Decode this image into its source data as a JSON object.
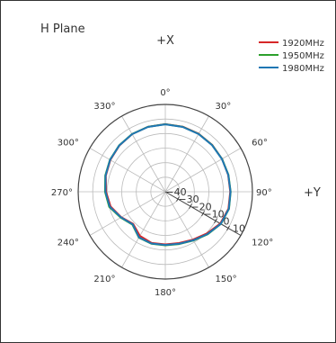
{
  "chart_data": {
    "type": "line",
    "subtype": "polar",
    "title": "H Plane",
    "direction_labels": {
      "top": "+X",
      "right": "+Y"
    },
    "angular_axis": {
      "direction": "clockwise",
      "zero_at": "top",
      "tick_values": [
        0,
        30,
        60,
        90,
        120,
        150,
        180,
        210,
        240,
        270,
        300,
        330
      ],
      "tick_labels": [
        "0°",
        "30°",
        "60°",
        "90°",
        "120°",
        "150°",
        "180°",
        "210°",
        "240°",
        "270°",
        "300°",
        "330°"
      ]
    },
    "radial_axis": {
      "range": [
        -50,
        10
      ],
      "tick_values": [
        -40,
        -30,
        -20,
        -10,
        0,
        10
      ],
      "tick_labels": [
        "−40",
        "−30",
        "−20",
        "−10",
        "0",
        "10"
      ],
      "label_angle_deg": 120
    },
    "grid": true,
    "legend": {
      "position": "top-right"
    },
    "series": [
      {
        "name": "1920MHz",
        "color": "#d62728",
        "theta": [
          0,
          15,
          30,
          45,
          60,
          75,
          90,
          105,
          120,
          135,
          150,
          165,
          180,
          195,
          210,
          225,
          240,
          255,
          270,
          285,
          300,
          315,
          330,
          345,
          360
        ],
        "r": [
          -3.5,
          -3.7,
          -4.0,
          -4.4,
          -4.9,
          -5.2,
          -5.3,
          -5.0,
          -6.3,
          -9.5,
          -12.0,
          -13.5,
          -13.8,
          -13.6,
          -15.0,
          -18.7,
          -15.0,
          -11.0,
          -9.2,
          -7.6,
          -6.3,
          -5.2,
          -4.3,
          -3.8,
          -3.5
        ]
      },
      {
        "name": "1950MHz",
        "color": "#2ca02c",
        "theta": [
          0,
          15,
          30,
          45,
          60,
          75,
          90,
          105,
          120,
          135,
          150,
          165,
          180,
          195,
          210,
          225,
          240,
          255,
          270,
          285,
          300,
          315,
          330,
          345,
          360
        ],
        "r": [
          -3.6,
          -3.8,
          -4.1,
          -4.5,
          -4.9,
          -5.0,
          -5.0,
          -4.6,
          -5.8,
          -8.7,
          -11.3,
          -12.8,
          -13.2,
          -13.0,
          -13.6,
          -18.0,
          -14.5,
          -10.0,
          -8.5,
          -7.2,
          -6.0,
          -5.0,
          -4.2,
          -3.8,
          -3.6
        ]
      },
      {
        "name": "1980MHz",
        "color": "#1f77b4",
        "theta": [
          0,
          15,
          30,
          45,
          60,
          75,
          90,
          105,
          120,
          135,
          150,
          165,
          180,
          195,
          210,
          225,
          240,
          255,
          270,
          285,
          300,
          315,
          330,
          345,
          360
        ],
        "r": [
          -3.7,
          -3.9,
          -4.2,
          -4.6,
          -5.0,
          -5.1,
          -5.1,
          -4.7,
          -5.9,
          -8.9,
          -11.5,
          -13.0,
          -13.4,
          -13.2,
          -13.8,
          -18.3,
          -14.8,
          -10.4,
          -8.8,
          -7.4,
          -6.1,
          -5.1,
          -4.3,
          -3.9,
          -3.7
        ]
      }
    ]
  },
  "colors": {
    "grid": "#bbbbbb",
    "outer_ring": "#444444",
    "text": "#333333"
  }
}
